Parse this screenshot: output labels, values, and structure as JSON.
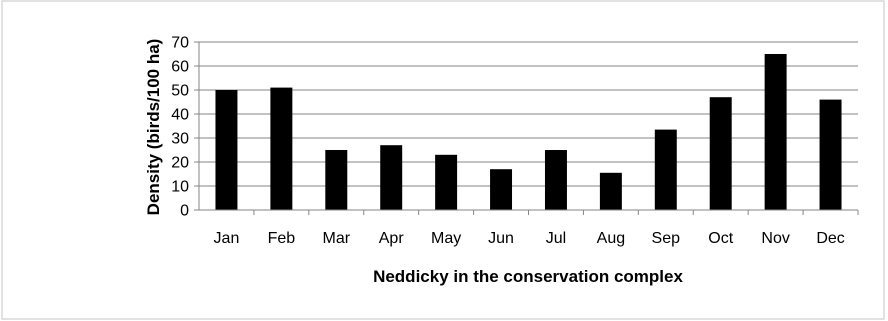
{
  "chart_data": {
    "type": "bar",
    "title": "",
    "xlabel": "Neddicky in the conservation complex",
    "ylabel": "Density (birds/100 ha)",
    "categories": [
      "Jan",
      "Feb",
      "Mar",
      "Apr",
      "May",
      "Jun",
      "Jul",
      "Aug",
      "Sep",
      "Oct",
      "Nov",
      "Dec"
    ],
    "values": [
      50,
      51,
      25,
      27,
      23,
      17,
      25,
      15.5,
      33.5,
      47,
      65,
      46
    ],
    "ylim": [
      0,
      70
    ],
    "yticks": [
      "0",
      "10",
      "20",
      "30",
      "40",
      "50",
      "60",
      "70"
    ],
    "grid": true,
    "legend": "none",
    "colors": {
      "bar": "#000000",
      "grid": "#868686",
      "axis": "#868686",
      "frame": "#d9d9d9"
    }
  }
}
